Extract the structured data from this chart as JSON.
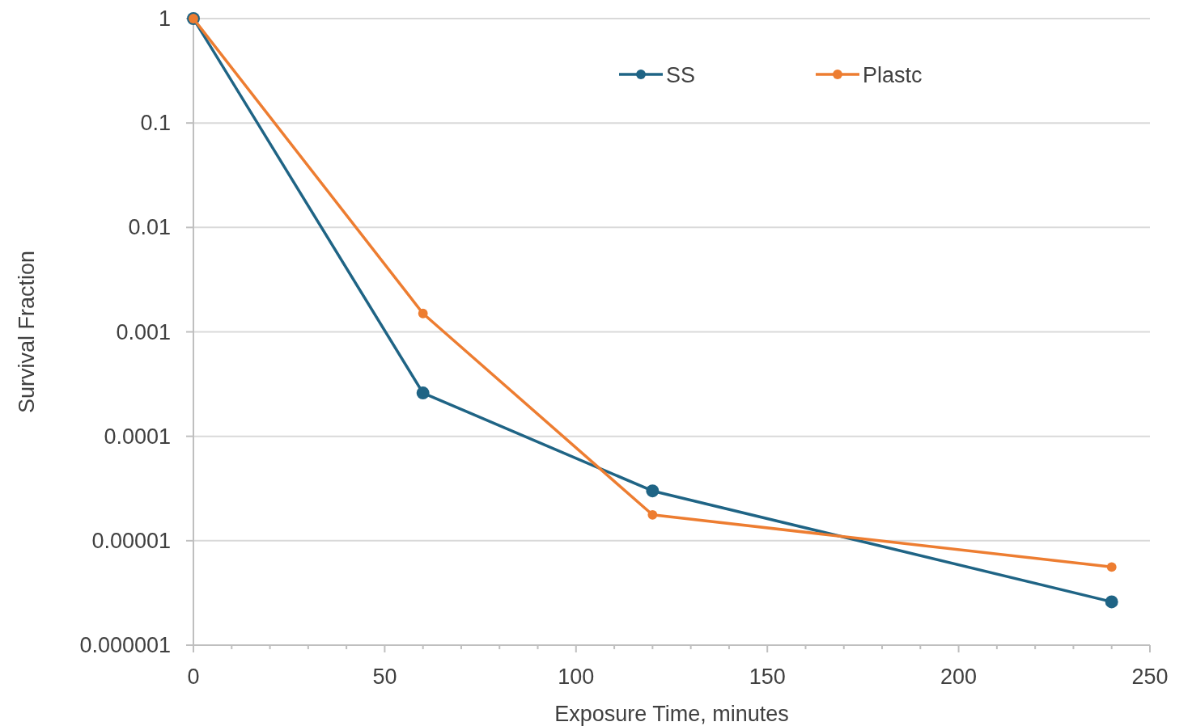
{
  "chart_data": {
    "type": "line",
    "xlabel": "Exposure Time, minutes",
    "ylabel": "Survival Fraction",
    "xlim": [
      0,
      250
    ],
    "xticks": [
      0,
      {
        "value": 10,
        "label": null
      },
      {
        "value": 20,
        "label": null
      },
      {
        "value": 30,
        "label": null
      },
      {
        "value": 40,
        "label": null
      },
      50,
      {
        "value": 60,
        "label": null
      },
      {
        "value": 70,
        "label": null
      },
      {
        "value": 80,
        "label": null
      },
      {
        "value": 90,
        "label": null
      },
      100,
      {
        "value": 110,
        "label": null
      },
      {
        "value": 120,
        "label": null
      },
      {
        "value": 130,
        "label": null
      },
      {
        "value": 140,
        "label": null
      },
      150,
      {
        "value": 160,
        "label": null
      },
      {
        "value": 170,
        "label": null
      },
      {
        "value": 180,
        "label": null
      },
      {
        "value": 190,
        "label": null
      },
      200,
      {
        "value": 210,
        "label": null
      },
      {
        "value": 220,
        "label": null
      },
      {
        "value": 230,
        "label": null
      },
      {
        "value": 240,
        "label": null
      },
      250
    ],
    "ylim": [
      1e-06,
      1
    ],
    "yticks": [
      {
        "value": 1e-06,
        "label": "0.000001"
      },
      {
        "value": 1e-05,
        "label": "0.00001"
      },
      0.0001,
      0.001,
      0.01,
      0.1,
      1
    ],
    "log": "y",
    "grid": "y",
    "legend": "top",
    "marker": "circle",
    "line_style": "solid",
    "x": [
      0,
      60,
      120,
      240
    ],
    "series": [
      {
        "name": "SS",
        "color": "#1f6485",
        "values": [
          1,
          0.00026,
          3e-05,
          2.6e-06
        ]
      },
      {
        "name": "Plastc",
        "color": "#ed7d31",
        "values": [
          1,
          0.0015,
          1.77e-05,
          5.6e-06
        ]
      }
    ]
  }
}
